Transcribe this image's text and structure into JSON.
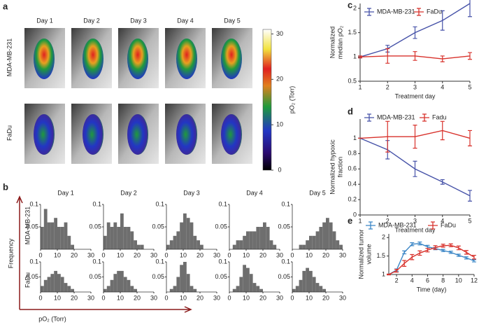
{
  "panel_labels": [
    "a",
    "b",
    "c",
    "d",
    "e"
  ],
  "panel_a": {
    "days": [
      "Day 1",
      "Day 2",
      "Day 3",
      "Day 4",
      "Day 5"
    ],
    "rows": [
      "MDA-MB-231",
      "FaDu"
    ]
  },
  "panel_b": {
    "rows": [
      "MDA-MB-231",
      "FaDu"
    ],
    "y_label": "Frequency",
    "x_label": "pO₂ (Torr)"
  },
  "chart_data": [
    {
      "type": "colorbar",
      "title": "pO₂ (Torr)",
      "ylim": [
        0,
        31
      ],
      "yticks": [
        0,
        10,
        20,
        30
      ]
    },
    {
      "type": "line",
      "x": [
        1,
        2,
        3,
        4,
        5
      ],
      "xlim": [
        1,
        5
      ],
      "xticks": [
        1,
        2,
        3,
        4,
        5
      ],
      "ylim": [
        0.5,
        2.1
      ],
      "yticks": [
        0.5,
        1,
        1.5,
        2
      ],
      "xlabel": "Treatment day",
      "ylabel": [
        "Normalized",
        "median pO₂"
      ],
      "series": [
        {
          "name": "MDA-MB-231",
          "color": "#4652a8",
          "values": [
            1,
            1.17,
            1.5,
            1.75,
            2.1
          ],
          "errors": [
            0.02,
            0.07,
            0.12,
            0.2,
            0.27
          ]
        },
        {
          "name": "FaDu",
          "color": "#d8312b",
          "values": [
            1,
            1.02,
            1.02,
            0.96,
            1.02
          ],
          "errors": [
            0.02,
            0.15,
            0.09,
            0.06,
            0.07
          ]
        }
      ]
    },
    {
      "type": "line",
      "x": [
        1,
        2,
        3,
        4,
        5
      ],
      "xlim": [
        1,
        5
      ],
      "xticks": [
        1,
        2,
        3,
        4,
        5
      ],
      "ylim": [
        0,
        1.25
      ],
      "yticks": [
        0,
        0.2,
        0.4,
        0.6,
        0.8,
        1
      ],
      "xlabel": "Treatment day",
      "ylabel": [
        "Normalized hypoxic",
        "fraction"
      ],
      "series": [
        {
          "name": "MDA-MB-231",
          "color": "#4652a8",
          "values": [
            1,
            0.85,
            0.6,
            0.43,
            0.25
          ],
          "errors": [
            0,
            0.12,
            0.1,
            0.03,
            0.07
          ]
        },
        {
          "name": "Fadu",
          "color": "#d8312b",
          "values": [
            1,
            1.02,
            1.02,
            1.1,
            1.0
          ],
          "errors": [
            0,
            0.2,
            0.15,
            0.12,
            0.1
          ]
        }
      ]
    },
    {
      "type": "line",
      "x": [
        1,
        2,
        3,
        4,
        5,
        6,
        7,
        8,
        9,
        10,
        11,
        12
      ],
      "xlim": [
        1,
        12
      ],
      "xticks": [
        2,
        4,
        6,
        8,
        10,
        12
      ],
      "ylim": [
        1,
        2.1
      ],
      "yticks": [
        1,
        1.5,
        2
      ],
      "xlabel": "Time (day)",
      "ylabel": [
        "Normalized tumor",
        "volume"
      ],
      "series": [
        {
          "name": "MDA-MB-231",
          "color": "#3b86c6",
          "values": [
            1,
            1.12,
            1.6,
            1.82,
            1.84,
            1.75,
            1.7,
            1.65,
            1.6,
            1.52,
            1.45,
            1.37
          ],
          "errors": [
            0.01,
            0.03,
            0.04,
            0.04,
            0.04,
            0.04,
            0.03,
            0.03,
            0.03,
            0.03,
            0.03,
            0.03
          ]
        },
        {
          "name": "FaDu",
          "color": "#d8312b",
          "values": [
            1,
            1.1,
            1.3,
            1.47,
            1.58,
            1.66,
            1.73,
            1.78,
            1.79,
            1.72,
            1.6,
            1.47
          ],
          "errors": [
            0.01,
            0.04,
            0.08,
            0.07,
            0.06,
            0.05,
            0.05,
            0.04,
            0.04,
            0.05,
            0.05,
            0.05
          ]
        }
      ]
    },
    {
      "type": "histogram",
      "title": "Day 1",
      "color": "#6e6e6e",
      "bins": [
        0,
        2,
        4,
        6,
        8,
        10,
        12,
        14,
        16,
        18,
        20,
        22,
        24,
        26,
        28,
        30
      ],
      "values": [
        0.05,
        0.09,
        0.06,
        0.06,
        0.07,
        0.05,
        0.05,
        0.06,
        0.03,
        0.01,
        0,
        0,
        0,
        0,
        0
      ],
      "xlim": [
        0,
        30
      ],
      "xticks": [
        0,
        10,
        20,
        30
      ],
      "ylim": [
        0,
        0.1
      ],
      "yticks": [
        0.05,
        0.1
      ]
    },
    {
      "type": "histogram",
      "title": "Day 2",
      "color": "#6e6e6e",
      "bins": [
        0,
        2,
        4,
        6,
        8,
        10,
        12,
        14,
        16,
        18,
        20,
        22,
        24,
        26,
        28,
        30
      ],
      "values": [
        0.03,
        0.06,
        0.05,
        0.06,
        0.05,
        0.08,
        0.05,
        0.05,
        0.04,
        0.02,
        0.01,
        0.01,
        0,
        0,
        0
      ],
      "xlim": [
        0,
        30
      ],
      "xticks": [
        0,
        10,
        20,
        30
      ],
      "ylim": [
        0,
        0.1
      ],
      "yticks": [
        0.05,
        0.1
      ]
    },
    {
      "type": "histogram",
      "title": "Day 3",
      "color": "#6e6e6e",
      "bins": [
        0,
        2,
        4,
        6,
        8,
        10,
        12,
        14,
        16,
        18,
        20,
        22,
        24,
        26,
        28,
        30
      ],
      "values": [
        0.01,
        0.02,
        0.03,
        0.04,
        0.06,
        0.08,
        0.07,
        0.06,
        0.03,
        0.02,
        0.01,
        0,
        0,
        0,
        0
      ],
      "xlim": [
        0,
        30
      ],
      "xticks": [
        0,
        10,
        20,
        30
      ],
      "ylim": [
        0,
        0.1
      ],
      "yticks": [
        0.05,
        0.1
      ]
    },
    {
      "type": "histogram",
      "title": "Day 4",
      "color": "#6e6e6e",
      "bins": [
        0,
        2,
        4,
        6,
        8,
        10,
        12,
        14,
        16,
        18,
        20,
        22,
        24,
        26,
        28,
        30
      ],
      "values": [
        0,
        0.01,
        0.02,
        0.02,
        0.03,
        0.04,
        0.04,
        0.04,
        0.05,
        0.05,
        0.06,
        0.05,
        0.02,
        0.01,
        0
      ],
      "xlim": [
        0,
        30
      ],
      "xticks": [
        0,
        10,
        20,
        30
      ],
      "ylim": [
        0,
        0.1
      ],
      "yticks": [
        0.05,
        0.1
      ]
    },
    {
      "type": "histogram",
      "title": "Day 5",
      "color": "#6e6e6e",
      "bins": [
        0,
        2,
        4,
        6,
        8,
        10,
        12,
        14,
        16,
        18,
        20,
        22,
        24,
        26,
        28,
        30
      ],
      "values": [
        0,
        0,
        0.01,
        0.01,
        0.02,
        0.03,
        0.03,
        0.04,
        0.05,
        0.06,
        0.07,
        0.06,
        0.04,
        0.02,
        0.01
      ],
      "xlim": [
        0,
        30
      ],
      "xticks": [
        0,
        10,
        20,
        30
      ],
      "ylim": [
        0,
        0.1
      ],
      "yticks": [
        0.05,
        0.1
      ]
    },
    {
      "type": "histogram",
      "color": "#6e6e6e",
      "bins": [
        0,
        2,
        4,
        6,
        8,
        10,
        12,
        14,
        16,
        18,
        20,
        22,
        24,
        26,
        28,
        30
      ],
      "values": [
        0.02,
        0.04,
        0.05,
        0.06,
        0.07,
        0.06,
        0.05,
        0.03,
        0.02,
        0.01,
        0,
        0,
        0,
        0,
        0
      ],
      "xlim": [
        0,
        30
      ],
      "xticks": [
        0,
        10,
        20,
        30
      ],
      "ylim": [
        0,
        0.1
      ],
      "yticks": [
        0.05,
        0.1
      ]
    },
    {
      "type": "histogram",
      "color": "#6e6e6e",
      "bins": [
        0,
        2,
        4,
        6,
        8,
        10,
        12,
        14,
        16,
        18,
        20,
        22,
        24,
        26,
        28,
        30
      ],
      "values": [
        0.01,
        0.02,
        0.04,
        0.06,
        0.07,
        0.07,
        0.05,
        0.04,
        0.02,
        0.01,
        0,
        0,
        0,
        0,
        0
      ],
      "xlim": [
        0,
        30
      ],
      "xticks": [
        0,
        10,
        20,
        30
      ],
      "ylim": [
        0,
        0.1
      ],
      "yticks": [
        0.05,
        0.1
      ]
    },
    {
      "type": "histogram",
      "color": "#6e6e6e",
      "bins": [
        0,
        2,
        4,
        6,
        8,
        10,
        12,
        14,
        16,
        18,
        20,
        22,
        24,
        26,
        28,
        30
      ],
      "values": [
        0,
        0.01,
        0.02,
        0.05,
        0.09,
        0.1,
        0.06,
        0.02,
        0.01,
        0,
        0,
        0,
        0,
        0,
        0
      ],
      "xlim": [
        0,
        30
      ],
      "xticks": [
        0,
        10,
        20,
        30
      ],
      "ylim": [
        0,
        0.1
      ],
      "yticks": [
        0.05,
        0.1
      ]
    },
    {
      "type": "histogram",
      "color": "#6e6e6e",
      "bins": [
        0,
        2,
        4,
        6,
        8,
        10,
        12,
        14,
        16,
        18,
        20,
        22,
        24,
        26,
        28,
        30
      ],
      "values": [
        0,
        0.01,
        0.02,
        0.05,
        0.09,
        0.08,
        0.06,
        0.03,
        0.02,
        0.01,
        0,
        0,
        0,
        0,
        0
      ],
      "xlim": [
        0,
        30
      ],
      "xticks": [
        0,
        10,
        20,
        30
      ],
      "ylim": [
        0,
        0.1
      ],
      "yticks": [
        0.05,
        0.1
      ]
    },
    {
      "type": "histogram",
      "color": "#6e6e6e",
      "bins": [
        0,
        2,
        4,
        6,
        8,
        10,
        12,
        14,
        16,
        18,
        20,
        22,
        24,
        26,
        28,
        30
      ],
      "values": [
        0.01,
        0.02,
        0.04,
        0.07,
        0.08,
        0.07,
        0.05,
        0.03,
        0.02,
        0.01,
        0,
        0,
        0,
        0,
        0
      ],
      "xlim": [
        0,
        30
      ],
      "xticks": [
        0,
        10,
        20,
        30
      ],
      "ylim": [
        0,
        0.1
      ],
      "yticks": [
        0.05,
        0.1
      ]
    }
  ]
}
